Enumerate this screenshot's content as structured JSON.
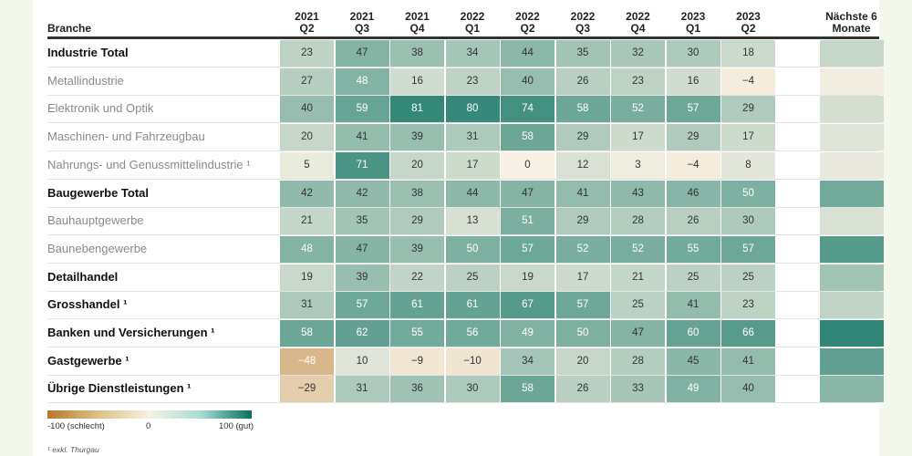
{
  "chart_data": {
    "type": "heatmap",
    "row_header": "Branche",
    "columns": [
      "2021 Q2",
      "2021 Q3",
      "2021 Q4",
      "2022 Q1",
      "2022 Q2",
      "2022 Q3",
      "2022 Q4",
      "2023 Q1",
      "2023 Q2"
    ],
    "column_years": [
      "2021",
      "2021",
      "2021",
      "2022",
      "2022",
      "2022",
      "2022",
      "2023",
      "2023"
    ],
    "column_quarters": [
      "Q2",
      "Q3",
      "Q4",
      "Q1",
      "Q2",
      "Q3",
      "Q4",
      "Q1",
      "Q2"
    ],
    "outlook_header_line1": "Nächste 6",
    "outlook_header_line2": "Monate",
    "rows": [
      {
        "label": "Industrie Total",
        "bold": true,
        "values": [
          23,
          47,
          38,
          34,
          44,
          35,
          32,
          30,
          18
        ],
        "outlook": 20
      },
      {
        "label": "Metallindustrie",
        "bold": false,
        "values": [
          27,
          48,
          16,
          23,
          40,
          26,
          23,
          16,
          -4
        ],
        "outlook": 2
      },
      {
        "label": "Elektronik und Optik",
        "bold": false,
        "values": [
          40,
          59,
          81,
          80,
          74,
          58,
          52,
          57,
          29
        ],
        "outlook": 14
      },
      {
        "label": "Maschinen- und Fahrzeugbau",
        "bold": false,
        "values": [
          20,
          41,
          39,
          31,
          58,
          29,
          17,
          29,
          17
        ],
        "outlook": 10
      },
      {
        "label": "Nahrungs- und Genussmittelindustrie ¹",
        "bold": false,
        "values": [
          5,
          71,
          20,
          17,
          0,
          12,
          3,
          -4,
          8
        ],
        "outlook": 6
      },
      {
        "label": "Baugewerbe Total",
        "bold": true,
        "values": [
          42,
          42,
          38,
          44,
          47,
          41,
          43,
          46,
          50
        ],
        "outlook": 55
      },
      {
        "label": "Bauhauptgewerbe",
        "bold": false,
        "values": [
          21,
          35,
          29,
          13,
          51,
          29,
          28,
          26,
          30
        ],
        "outlook": 12
      },
      {
        "label": "Baunebengewerbe",
        "bold": false,
        "values": [
          48,
          47,
          39,
          50,
          57,
          52,
          52,
          55,
          57
        ],
        "outlook": 67
      },
      {
        "label": "Detailhandel",
        "bold": true,
        "values": [
          19,
          39,
          22,
          25,
          19,
          17,
          21,
          25,
          25
        ],
        "outlook": 35
      },
      {
        "label": "Grosshandel ¹",
        "bold": true,
        "values": [
          31,
          57,
          61,
          61,
          67,
          57,
          25,
          41,
          23
        ],
        "outlook": 22
      },
      {
        "label": "Banken und Versicherungen ¹",
        "bold": true,
        "values": [
          58,
          62,
          55,
          56,
          49,
          50,
          47,
          60,
          66
        ],
        "outlook": 82
      },
      {
        "label": "Gastgewerbe ¹",
        "bold": true,
        "values": [
          -48,
          10,
          -9,
          -10,
          34,
          20,
          28,
          45,
          41
        ],
        "outlook": 62
      },
      {
        "label": "Übrige Dienstleistungen ¹",
        "bold": true,
        "values": [
          -29,
          31,
          36,
          30,
          58,
          26,
          33,
          49,
          40
        ],
        "outlook": 45
      }
    ],
    "scale": {
      "min": -100,
      "max": 100,
      "min_label": "-100 (schlecht)",
      "mid_label": "0",
      "max_label": "100 (gut)"
    },
    "colors": {
      "negative": "#b87a28",
      "neutral": "#f6f1e4",
      "positive": "#066f5f"
    },
    "footnote": "¹ exkl. Thurgau"
  }
}
